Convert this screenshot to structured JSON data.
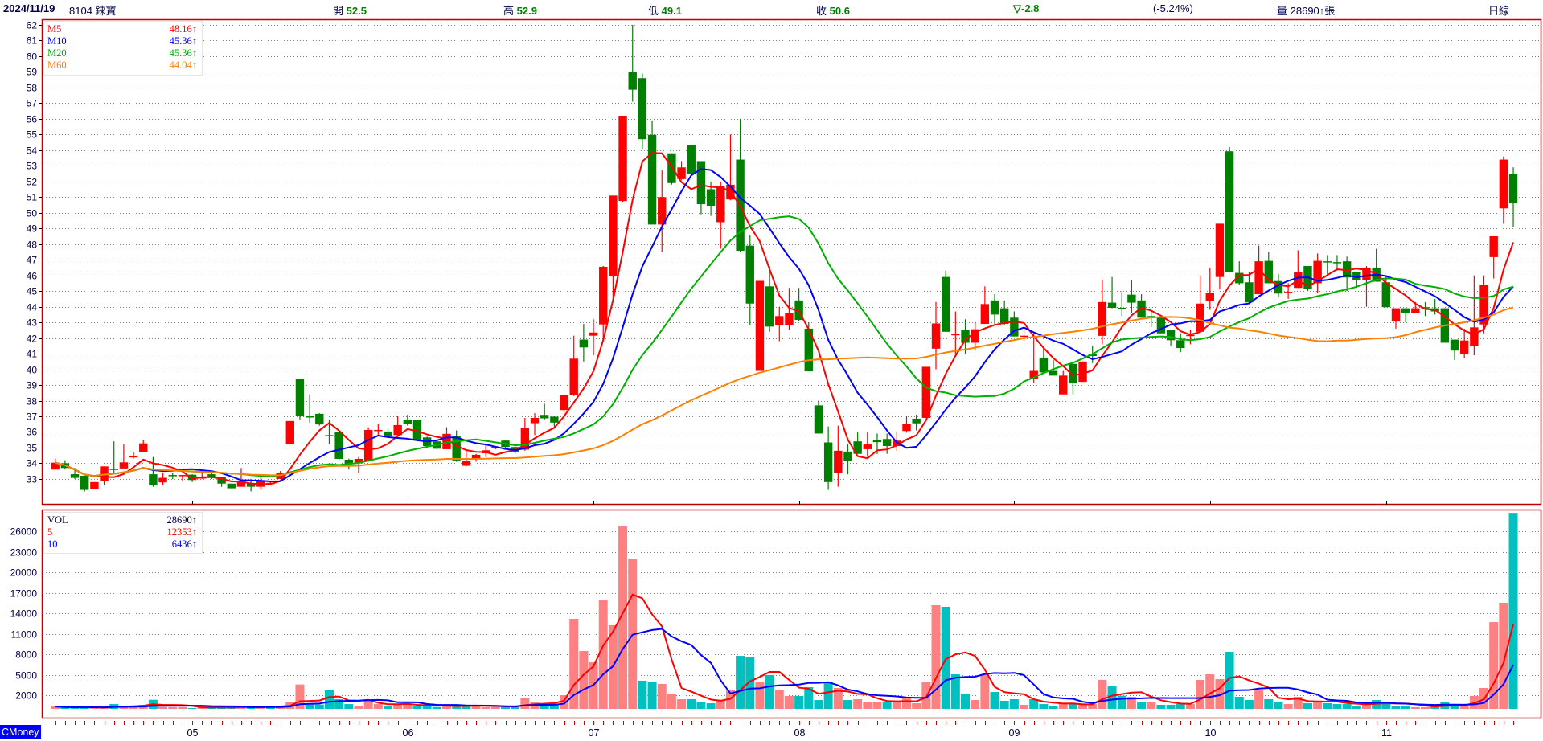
{
  "header": {
    "date": "2024/11/19",
    "stock": "8104 錸寶",
    "open_label": "開",
    "open": "52.5",
    "high_label": "高",
    "high": "52.9",
    "low_label": "低",
    "low": "49.1",
    "close_label": "收",
    "close": "50.6",
    "change": "▽-2.8",
    "change_pct": "(-5.24%)",
    "volume_label": "量",
    "volume": "28690↑張",
    "period": "日線"
  },
  "price_legend": [
    {
      "name": "M5",
      "value": "48.16↑",
      "color": "#ff0000"
    },
    {
      "name": "M10",
      "value": "45.36↑",
      "color": "#0000ff"
    },
    {
      "name": "M20",
      "value": "45.36↑",
      "color": "#00b000"
    },
    {
      "name": "M60",
      "value": "44.04↑",
      "color": "#ff8000"
    }
  ],
  "volume_legend": [
    {
      "name": "VOL",
      "value": "28690↑",
      "color": "#000040"
    },
    {
      "name": "5",
      "value": "12353↑",
      "color": "#ff0000"
    },
    {
      "name": "10",
      "value": "6436↑",
      "color": "#0000ff"
    }
  ],
  "brand": "CMoney",
  "colors": {
    "frame": "#c00000",
    "up": "#ff0000",
    "down": "#008000",
    "vol_up": "#ff8080",
    "vol_down": "#00c0c0",
    "grid": "#808080"
  },
  "chart_data": [
    {
      "type": "candlestick",
      "ylim": [
        33,
        62
      ],
      "y_ticks": [
        "62",
        "61",
        "60",
        "59",
        "58",
        "57",
        "56",
        "55",
        "54",
        "53",
        "52",
        "51",
        "50",
        "49",
        "48",
        "47",
        "46",
        "45",
        "44",
        "43",
        "42",
        "41",
        "40",
        "39",
        "38",
        "37",
        "36",
        "35",
        "34",
        "33"
      ],
      "grid": true,
      "moving_averages": [
        5,
        10,
        20,
        60
      ],
      "month_labels": [
        {
          "label": "05",
          "index": 14
        },
        {
          "label": "06",
          "index": 36
        },
        {
          "label": "07",
          "index": 55
        },
        {
          "label": "08",
          "index": 76
        },
        {
          "label": "09",
          "index": 98
        },
        {
          "label": "10",
          "index": 118
        },
        {
          "label": "11",
          "index": 136
        }
      ],
      "ohlc": [
        [
          33.6,
          34.3,
          33.6,
          34.04
        ],
        [
          34.0,
          34.2,
          33.6,
          33.7
        ],
        [
          33.3,
          33.7,
          33.0,
          33.07
        ],
        [
          33.2,
          33.2,
          32.2,
          32.3
        ],
        [
          32.37,
          32.8,
          32.37,
          32.8
        ],
        [
          32.85,
          33.8,
          32.6,
          33.8
        ],
        [
          33.65,
          35.4,
          33.4,
          33.6
        ],
        [
          33.67,
          35.2,
          33.67,
          34.06
        ],
        [
          34.4,
          34.7,
          34.3,
          34.45
        ],
        [
          34.73,
          35.5,
          34.73,
          35.27
        ],
        [
          33.3,
          34.4,
          32.5,
          32.6
        ],
        [
          32.78,
          33.4,
          32.6,
          33.07
        ],
        [
          33.25,
          33.4,
          33.0,
          33.2
        ],
        [
          33.2,
          33.25,
          32.9,
          33.25
        ],
        [
          33.27,
          33.3,
          32.8,
          32.93
        ],
        [
          33.05,
          33.5,
          33.0,
          33.1
        ],
        [
          33.3,
          33.4,
          33.0,
          33.08
        ],
        [
          33.1,
          33.1,
          32.5,
          32.7
        ],
        [
          32.7,
          32.7,
          32.4,
          32.4
        ],
        [
          32.5,
          33.7,
          32.5,
          32.85
        ],
        [
          32.7,
          33.0,
          32.2,
          32.5
        ],
        [
          32.5,
          33.1,
          32.3,
          32.85
        ],
        [
          32.7,
          32.8,
          32.6,
          32.75
        ],
        [
          33.0,
          33.5,
          33.0,
          33.4
        ],
        [
          35.2,
          36.7,
          35.2,
          36.7
        ],
        [
          39.4,
          39.4,
          36.8,
          37.0
        ],
        [
          37.0,
          38.4,
          36.6,
          36.95
        ],
        [
          37.16,
          37.2,
          36.4,
          36.48
        ],
        [
          35.8,
          36.8,
          35.2,
          35.75
        ],
        [
          35.98,
          36.0,
          34.2,
          34.28
        ],
        [
          34.23,
          34.3,
          33.6,
          33.96
        ],
        [
          34.0,
          34.4,
          33.4,
          34.28
        ],
        [
          34.18,
          36.3,
          34.1,
          36.13
        ],
        [
          36.1,
          36.5,
          35.75,
          36.13
        ],
        [
          36.03,
          36.2,
          35.7,
          35.72
        ],
        [
          35.8,
          37.0,
          35.8,
          36.44
        ],
        [
          36.78,
          37.1,
          36.4,
          36.5
        ],
        [
          36.78,
          36.8,
          35.4,
          35.45
        ],
        [
          35.65,
          35.7,
          35.0,
          35.1
        ],
        [
          35.4,
          35.4,
          34.9,
          34.93
        ],
        [
          34.9,
          36.3,
          34.9,
          35.88
        ],
        [
          35.75,
          36.1,
          34.1,
          34.18
        ],
        [
          33.84,
          34.9,
          33.8,
          34.13
        ],
        [
          34.28,
          34.6,
          34.1,
          34.54
        ],
        [
          34.64,
          35.2,
          34.4,
          34.83
        ],
        [
          35.0,
          35.1,
          34.9,
          35.05
        ],
        [
          35.45,
          35.5,
          35.0,
          35.04
        ],
        [
          35.04,
          35.1,
          34.6,
          34.7
        ],
        [
          34.87,
          36.9,
          34.8,
          36.27
        ],
        [
          36.56,
          37.2,
          35.8,
          36.9
        ],
        [
          37.09,
          37.8,
          36.8,
          36.87
        ],
        [
          36.98,
          37.0,
          36.3,
          36.6
        ],
        [
          37.4,
          38.4,
          36.4,
          38.36
        ],
        [
          38.36,
          42.15,
          38.3,
          40.68
        ],
        [
          41.9,
          42.9,
          40.5,
          41.4
        ],
        [
          42.15,
          43.2,
          40.9,
          42.35
        ],
        [
          42.87,
          46.6,
          41.8,
          46.55
        ],
        [
          45.93,
          51.1,
          44.3,
          51.1
        ],
        [
          50.75,
          56.2,
          50.7,
          56.2
        ],
        [
          59.0,
          62.0,
          57.1,
          57.86
        ],
        [
          58.6,
          58.9,
          54.05,
          54.7
        ],
        [
          54.98,
          55.9,
          49.25,
          49.25
        ],
        [
          49.25,
          52.7,
          47.5,
          51.0
        ],
        [
          53.8,
          53.8,
          51.8,
          51.9
        ],
        [
          52.15,
          53.3,
          52.1,
          52.9
        ],
        [
          54.34,
          54.34,
          52.48,
          52.48
        ],
        [
          53.3,
          53.3,
          49.9,
          50.55
        ],
        [
          51.5,
          52.0,
          49.8,
          50.45
        ],
        [
          49.4,
          52.0,
          47.7,
          51.7
        ],
        [
          50.85,
          55.0,
          50.8,
          51.79
        ],
        [
          53.4,
          56.0,
          47.5,
          47.57
        ],
        [
          47.9,
          48.6,
          42.8,
          44.2
        ],
        [
          39.9,
          45.65,
          39.9,
          45.65
        ],
        [
          45.3,
          46.6,
          42.4,
          42.73
        ],
        [
          42.83,
          44.0,
          41.8,
          43.4
        ],
        [
          42.83,
          45.2,
          42.5,
          43.6
        ],
        [
          44.4,
          45.2,
          43.1,
          43.16
        ],
        [
          42.6,
          43.0,
          39.87,
          39.87
        ],
        [
          37.7,
          38.0,
          35.9,
          35.9
        ],
        [
          35.33,
          36.35,
          32.3,
          32.8
        ],
        [
          33.4,
          36.4,
          32.5,
          34.8
        ],
        [
          34.75,
          35.2,
          33.3,
          34.17
        ],
        [
          35.4,
          36.0,
          34.6,
          34.6
        ],
        [
          34.9,
          36.0,
          34.4,
          35.2
        ],
        [
          35.5,
          35.9,
          34.6,
          35.35
        ],
        [
          35.55,
          35.9,
          34.6,
          35.1
        ],
        [
          35.1,
          36.0,
          34.8,
          35.45
        ],
        [
          36.06,
          37.0,
          35.95,
          36.5
        ],
        [
          36.85,
          37.1,
          36.1,
          36.55
        ],
        [
          36.9,
          40.16,
          36.9,
          40.16
        ],
        [
          41.32,
          44.3,
          40.0,
          42.93
        ],
        [
          45.9,
          46.3,
          42.4,
          42.4
        ],
        [
          42.2,
          43.7,
          40.9,
          42.25
        ],
        [
          42.5,
          43.2,
          41.0,
          41.7
        ],
        [
          41.7,
          43.0,
          41.2,
          42.56
        ],
        [
          42.9,
          45.3,
          42.9,
          44.17
        ],
        [
          44.4,
          44.8,
          42.9,
          43.5
        ],
        [
          43.9,
          44.4,
          42.8,
          42.9
        ],
        [
          43.3,
          43.7,
          42.1,
          42.1
        ],
        [
          42.1,
          42.5,
          41.8,
          42.15
        ],
        [
          39.4,
          42.4,
          39.1,
          39.9
        ],
        [
          40.75,
          41.4,
          39.8,
          39.8
        ],
        [
          39.9,
          40.6,
          39.6,
          39.6
        ],
        [
          38.4,
          39.9,
          38.4,
          39.6
        ],
        [
          40.35,
          40.35,
          38.4,
          39.1
        ],
        [
          39.2,
          40.5,
          39.2,
          40.5
        ],
        [
          41.0,
          41.5,
          40.4,
          40.85
        ],
        [
          42.14,
          45.7,
          41.6,
          44.3
        ],
        [
          44.26,
          45.9,
          43.9,
          43.93
        ],
        [
          43.93,
          45.0,
          43.4,
          43.9
        ],
        [
          44.77,
          45.7,
          43.6,
          44.26
        ],
        [
          44.4,
          44.8,
          43.3,
          43.3
        ],
        [
          43.4,
          43.8,
          42.7,
          43.35
        ],
        [
          43.3,
          43.3,
          42.3,
          42.3
        ],
        [
          42.5,
          42.5,
          41.5,
          41.86
        ],
        [
          41.86,
          42.3,
          41.1,
          41.36
        ],
        [
          42.15,
          42.5,
          41.6,
          42.2
        ],
        [
          42.4,
          46.0,
          42.4,
          44.2
        ],
        [
          44.38,
          46.5,
          43.8,
          44.86
        ],
        [
          45.9,
          49.3,
          45.1,
          49.3
        ],
        [
          53.93,
          54.2,
          46.2,
          46.2
        ],
        [
          46.16,
          46.9,
          45.4,
          45.5
        ],
        [
          45.56,
          46.2,
          44.2,
          44.28
        ],
        [
          44.8,
          47.9,
          44.8,
          46.9
        ],
        [
          46.93,
          47.5,
          45.5,
          45.5
        ],
        [
          45.64,
          46.1,
          44.6,
          44.84
        ],
        [
          44.9,
          45.5,
          44.5,
          44.95
        ],
        [
          45.2,
          47.6,
          45.2,
          46.2
        ],
        [
          46.6,
          46.6,
          45.0,
          45.15
        ],
        [
          45.5,
          47.4,
          44.9,
          46.93
        ],
        [
          46.9,
          47.3,
          46.0,
          46.88
        ],
        [
          46.85,
          47.3,
          46.3,
          46.8
        ],
        [
          46.9,
          47.2,
          45.0,
          45.87
        ],
        [
          46.2,
          46.2,
          45.2,
          45.7
        ],
        [
          45.7,
          46.6,
          44.0,
          46.5
        ],
        [
          46.5,
          47.7,
          45.6,
          45.6
        ],
        [
          45.56,
          46.0,
          43.97,
          43.97
        ],
        [
          43.05,
          43.9,
          42.6,
          43.9
        ],
        [
          43.9,
          43.9,
          43.0,
          43.6
        ],
        [
          43.6,
          44.3,
          43.6,
          43.9
        ],
        [
          43.97,
          44.3,
          43.4,
          43.9
        ],
        [
          43.9,
          44.5,
          43.5,
          43.7
        ],
        [
          43.9,
          43.9,
          41.7,
          41.7
        ],
        [
          41.9,
          41.9,
          40.6,
          41.2
        ],
        [
          41.0,
          42.6,
          40.7,
          41.84
        ],
        [
          41.5,
          46.0,
          40.9,
          42.68
        ],
        [
          42.87,
          46.0,
          42.3,
          45.4
        ],
        [
          47.17,
          48.5,
          45.8,
          48.5
        ],
        [
          50.28,
          53.6,
          49.3,
          53.4
        ],
        [
          52.5,
          52.9,
          49.1,
          50.6
        ]
      ]
    },
    {
      "type": "bar",
      "ylim": [
        0,
        28690
      ],
      "y_ticks": [
        "26000",
        "23000",
        "20000",
        "17000",
        "14000",
        "11000",
        "8000",
        "5000",
        "2000"
      ],
      "moving_averages": [
        5,
        10
      ],
      "values": [
        350,
        200,
        200,
        200,
        200,
        200,
        700,
        350,
        430,
        590,
        1330,
        270,
        270,
        270,
        120,
        200,
        200,
        200,
        200,
        430,
        270,
        350,
        350,
        350,
        940,
        3570,
        630,
        630,
        2820,
        1410,
        700,
        470,
        1220,
        700,
        350,
        700,
        700,
        470,
        350,
        270,
        510,
        470,
        510,
        510,
        270,
        270,
        270,
        270,
        1570,
        1020,
        670,
        670,
        2000,
        13180,
        8470,
        6820,
        15880,
        12240,
        26700,
        22000,
        4120,
        4000,
        3650,
        2120,
        1410,
        1410,
        1060,
        820,
        1220,
        2820,
        7760,
        7530,
        4000,
        4940,
        2820,
        1880,
        1880,
        3180,
        1290,
        3880,
        3060,
        1290,
        1410,
        940,
        1060,
        1060,
        1060,
        1530,
        820,
        3880,
        15180,
        14940,
        5060,
        2240,
        1290,
        5060,
        2470,
        1180,
        1410,
        590,
        1410,
        700,
        470,
        700,
        700,
        700,
        700,
        4240,
        3290,
        1920,
        1760,
        940,
        1060,
        590,
        590,
        700,
        700,
        4240,
        5060,
        4350,
        8350,
        1760,
        1290,
        2700,
        1410,
        940,
        700,
        1760,
        820,
        1180,
        820,
        700,
        700,
        350,
        700,
        1290,
        1060,
        470,
        350,
        240,
        240,
        350,
        1060,
        470,
        470,
        1880,
        3060,
        12700,
        15530,
        28690
      ]
    }
  ]
}
